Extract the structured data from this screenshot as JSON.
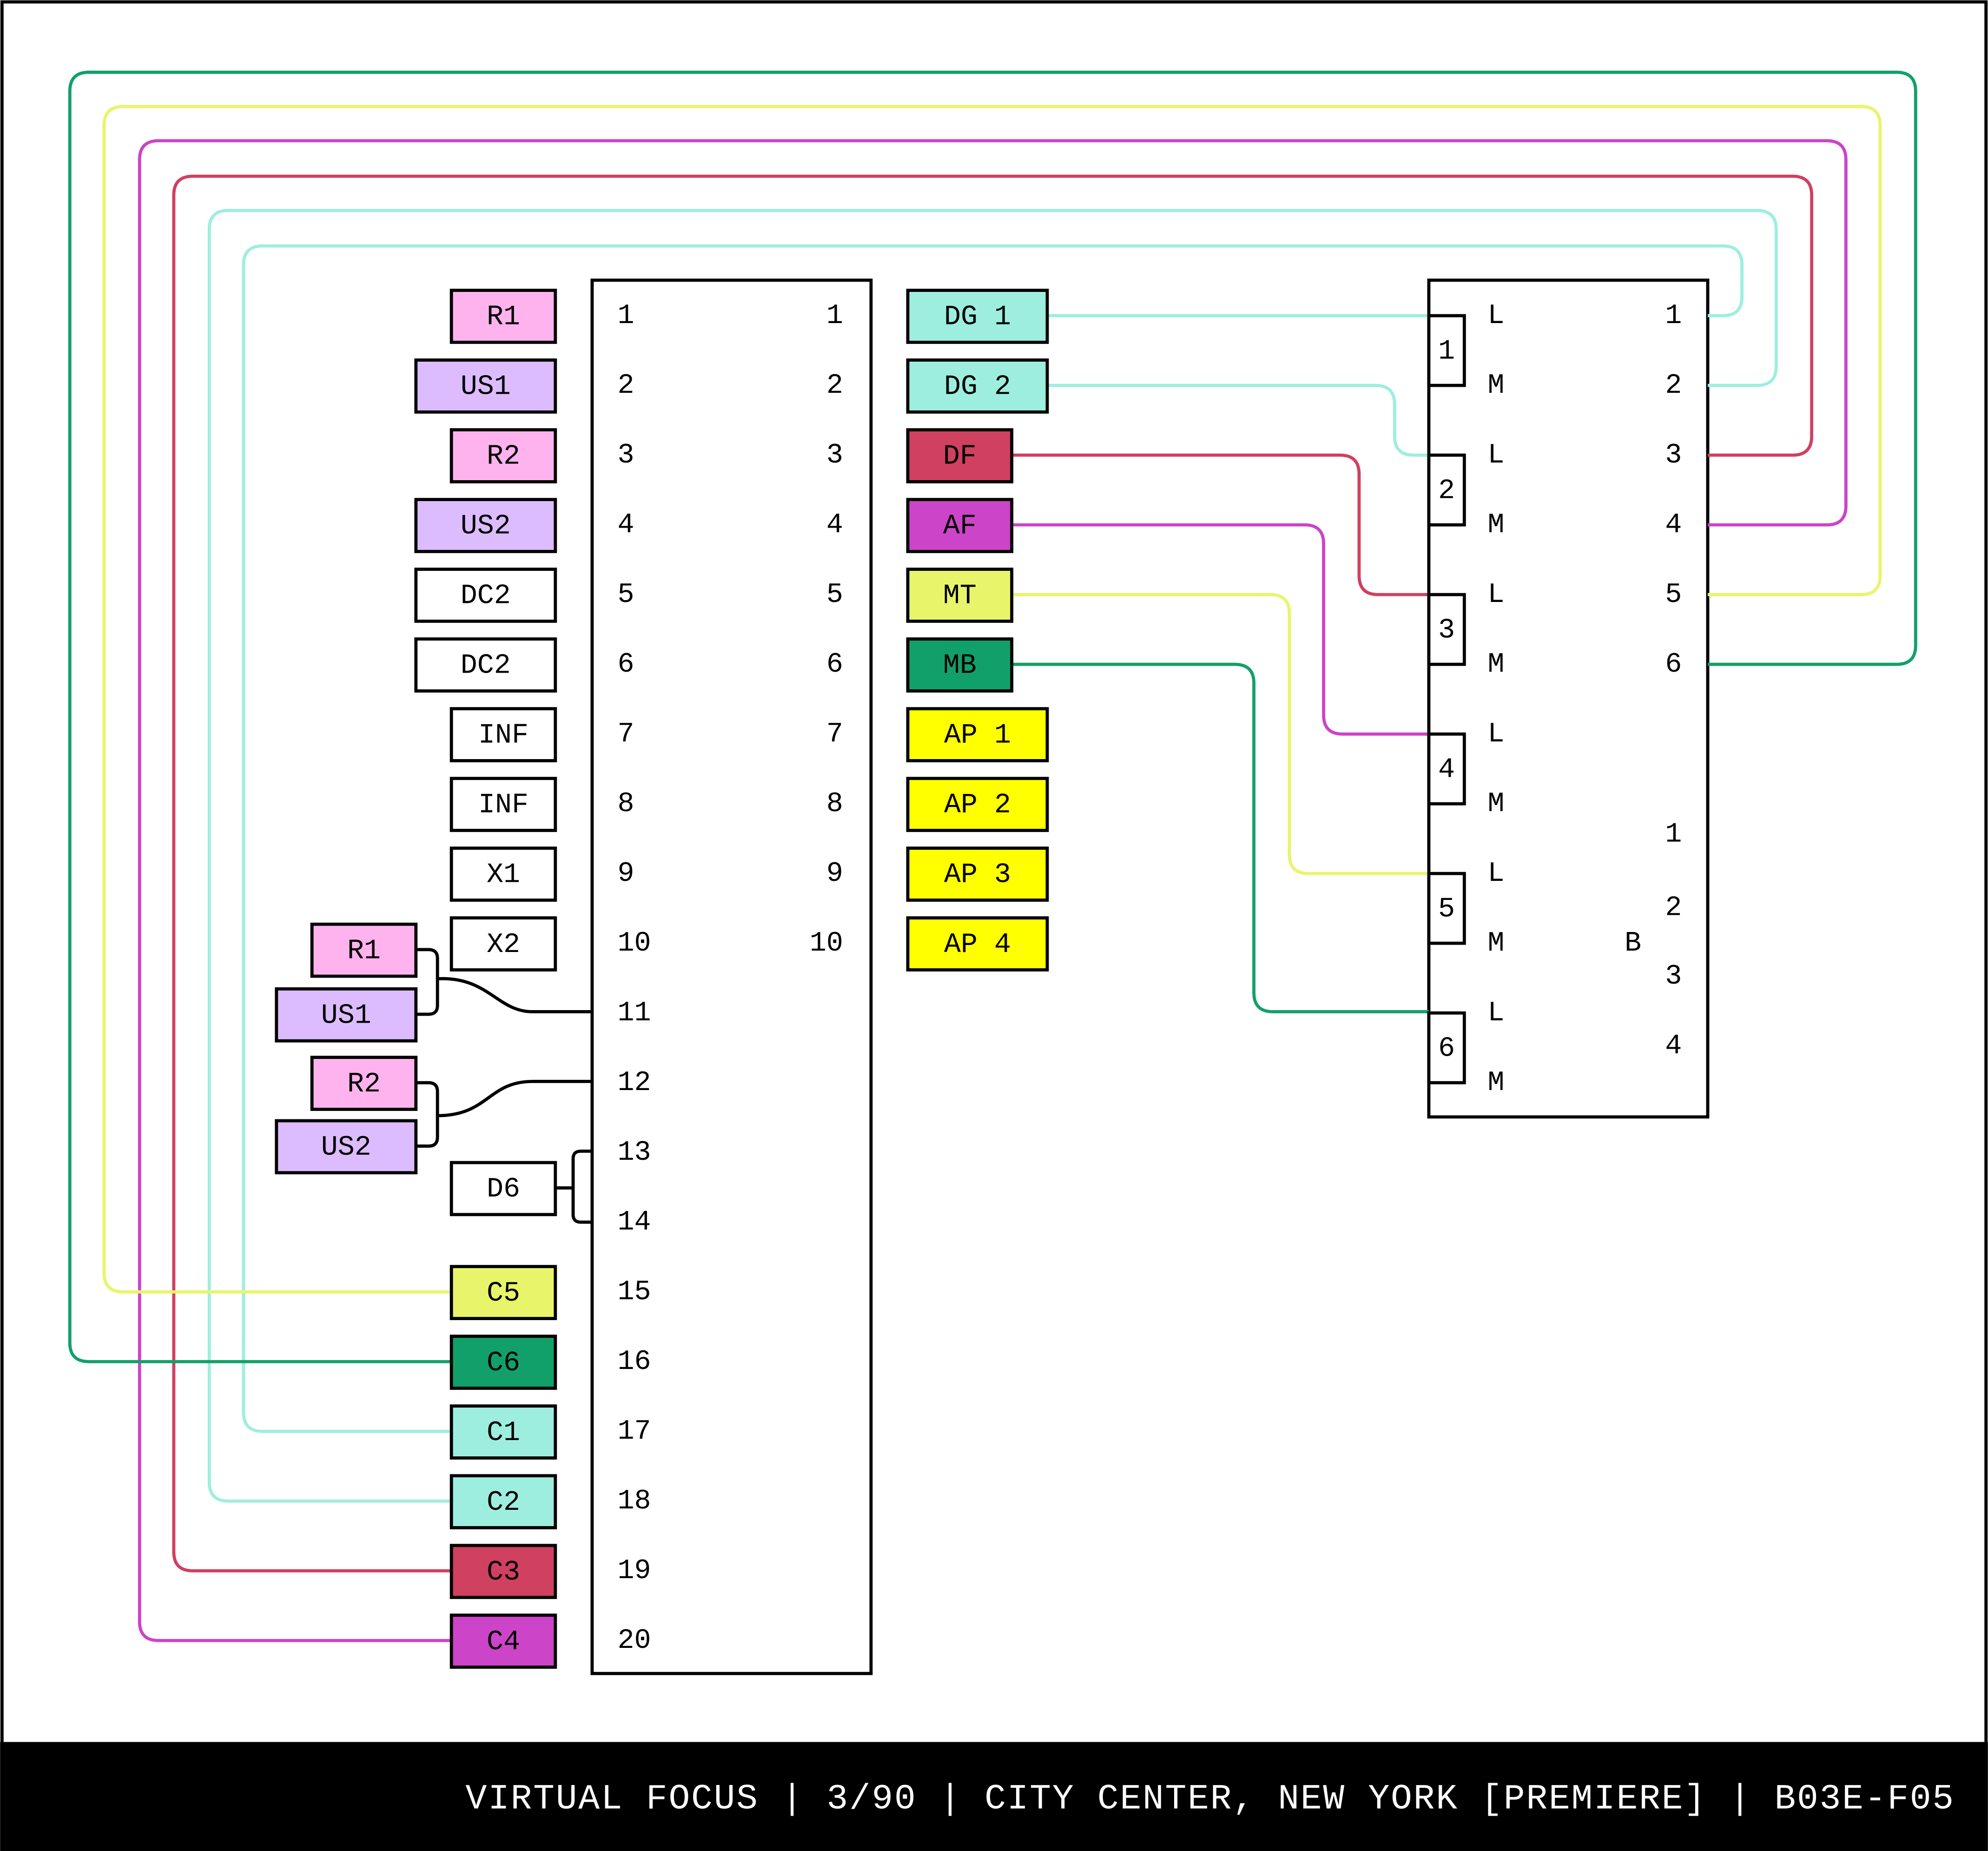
{
  "patch_bay": {
    "left_numbers": [
      1,
      2,
      3,
      4,
      5,
      6,
      7,
      8,
      9,
      10,
      11,
      12,
      13,
      14,
      15,
      16,
      17,
      18,
      19,
      20
    ],
    "right_numbers": [
      1,
      2,
      3,
      4,
      5,
      6,
      7,
      8,
      9,
      10
    ]
  },
  "inputs": [
    {
      "label": "R1",
      "color": "#ffb3ee"
    },
    {
      "label": "US1",
      "color": "#dcbcff"
    },
    {
      "label": "R2",
      "color": "#ffb3ee"
    },
    {
      "label": "US2",
      "color": "#dcbcff"
    },
    {
      "label": "DC2",
      "color": "#ffffff"
    },
    {
      "label": "DC2",
      "color": "#ffffff"
    },
    {
      "label": "INF",
      "color": "#ffffff"
    },
    {
      "label": "INF",
      "color": "#ffffff"
    },
    {
      "label": "X1",
      "color": "#ffffff"
    },
    {
      "label": "X2",
      "color": "#ffffff"
    }
  ],
  "merged_inputs": [
    {
      "label": "R1",
      "color": "#ffb3ee"
    },
    {
      "label": "US1",
      "color": "#dcbcff"
    },
    {
      "label": "R2",
      "color": "#ffb3ee"
    },
    {
      "label": "US2",
      "color": "#dcbcff"
    },
    {
      "label": "D6",
      "color": "#ffffff"
    }
  ],
  "return_inputs": [
    {
      "label": "C5",
      "color": "#e8f56a"
    },
    {
      "label": "C6",
      "color": "#12a06a"
    },
    {
      "label": "C1",
      "color": "#9eeee0"
    },
    {
      "label": "C2",
      "color": "#9eeee0"
    },
    {
      "label": "C3",
      "color": "#d04060"
    },
    {
      "label": "C4",
      "color": "#cc44c8"
    }
  ],
  "outputs": [
    {
      "label": "DG 1",
      "color": "#9eeee0"
    },
    {
      "label": "DG 2",
      "color": "#9eeee0"
    },
    {
      "label": "DF",
      "color": "#d04060"
    },
    {
      "label": "AF",
      "color": "#cc44c8"
    },
    {
      "label": "MT",
      "color": "#e8f56a"
    },
    {
      "label": "MB",
      "color": "#12a06a"
    },
    {
      "label": "AP 1",
      "color": "#ffff00"
    },
    {
      "label": "AP 2",
      "color": "#ffff00"
    },
    {
      "label": "AP 3",
      "color": "#ffff00"
    },
    {
      "label": "AP 4",
      "color": "#ffff00"
    }
  ],
  "stage_box": {
    "inputs": [
      1,
      2,
      3,
      4,
      5,
      6
    ],
    "pins": [
      "L",
      "M",
      "L",
      "M",
      "L",
      "M",
      "L",
      "M",
      "L",
      "M",
      "L",
      "M"
    ],
    "outputs": [
      1,
      2,
      3,
      4,
      5,
      6
    ],
    "aux_outputs": [
      1,
      2,
      3,
      4
    ],
    "aux_label": "B"
  },
  "footer": "VIRTUAL FOCUS | 3/90 | CITY CENTER, NEW YORK [PREMIERE] | B03E-F05"
}
